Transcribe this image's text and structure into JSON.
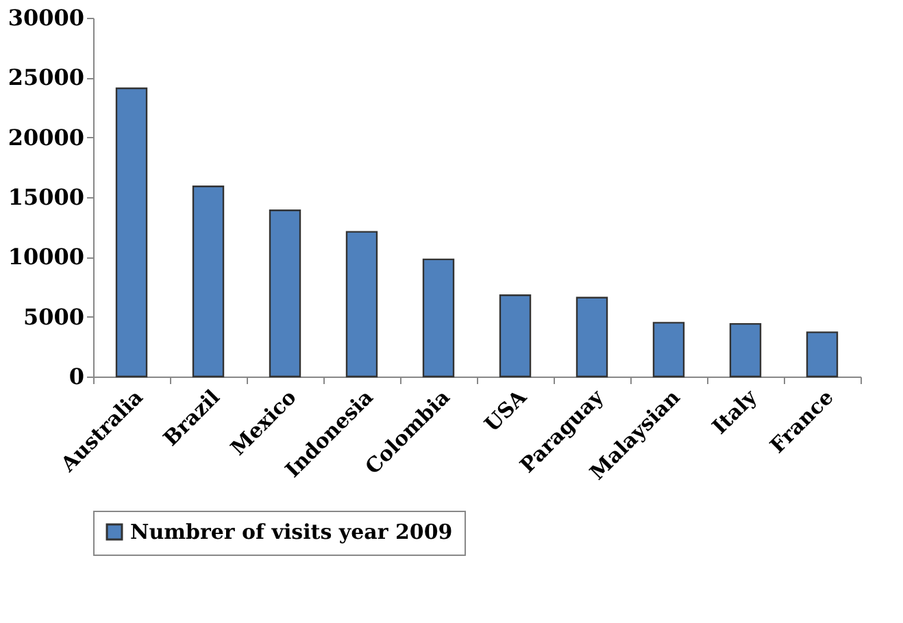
{
  "chart_data": {
    "type": "bar",
    "categories": [
      "Australia",
      "Brazil",
      "Mexico",
      "Indonesia",
      "Colombia",
      "USA",
      "Paraguay",
      "Malaysian",
      "Italy",
      "France"
    ],
    "series": [
      {
        "name": "Numbrer of visits year 2009",
        "color": "#4f81bd",
        "values": [
          24100,
          15900,
          13900,
          12100,
          9800,
          6800,
          6600,
          4500,
          4400,
          3700
        ]
      }
    ],
    "ylim": [
      0,
      30000
    ],
    "yticks": [
      0,
      5000,
      10000,
      15000,
      20000,
      25000,
      30000
    ],
    "grid": false,
    "legend": "bottom"
  }
}
